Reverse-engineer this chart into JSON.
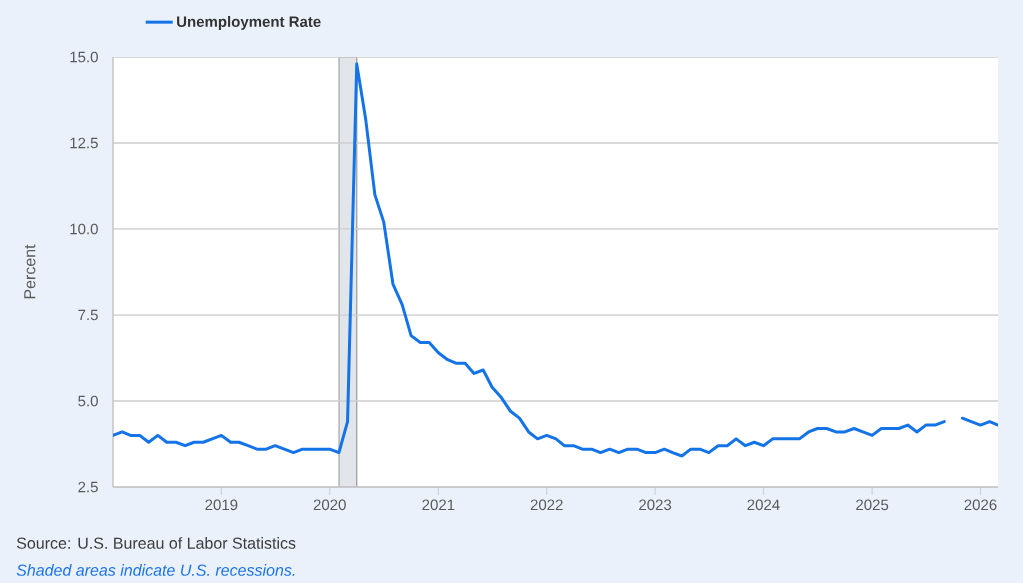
{
  "chart_data": {
    "type": "line",
    "x": [
      "2018-01",
      "2018-02",
      "2018-03",
      "2018-04",
      "2018-05",
      "2018-06",
      "2018-07",
      "2018-08",
      "2018-09",
      "2018-10",
      "2018-11",
      "2018-12",
      "2019-01",
      "2019-02",
      "2019-03",
      "2019-04",
      "2019-05",
      "2019-06",
      "2019-07",
      "2019-08",
      "2019-09",
      "2019-10",
      "2019-11",
      "2019-12",
      "2020-01",
      "2020-02",
      "2020-03",
      "2020-04",
      "2020-05",
      "2020-06",
      "2020-07",
      "2020-08",
      "2020-09",
      "2020-10",
      "2020-11",
      "2020-12",
      "2021-01",
      "2021-02",
      "2021-03",
      "2021-04",
      "2021-05",
      "2021-06",
      "2021-07",
      "2021-08",
      "2021-09",
      "2021-10",
      "2021-11",
      "2021-12",
      "2022-01",
      "2022-02",
      "2022-03",
      "2022-04",
      "2022-05",
      "2022-06",
      "2022-07",
      "2022-08",
      "2022-09",
      "2022-10",
      "2022-11",
      "2022-12",
      "2023-01",
      "2023-02",
      "2023-03",
      "2023-04",
      "2023-05",
      "2023-06",
      "2023-07",
      "2023-08",
      "2023-09",
      "2023-10",
      "2023-11",
      "2023-12",
      "2024-01",
      "2024-02",
      "2024-03",
      "2024-04",
      "2024-05",
      "2024-06",
      "2024-07",
      "2024-08",
      "2024-09",
      "2024-10",
      "2024-11",
      "2024-12",
      "2025-01",
      "2025-02",
      "2025-03",
      "2025-04",
      "2025-05",
      "2025-06",
      "2025-07",
      "2025-08",
      "2025-09",
      "2025-10",
      "2025-11",
      "2025-12",
      "2026-01",
      "2026-02",
      "2026-03"
    ],
    "series": [
      {
        "name": "Unemployment Rate",
        "color": "#1473e6",
        "values": [
          4.0,
          4.1,
          4.0,
          4.0,
          3.8,
          4.0,
          3.8,
          3.8,
          3.7,
          3.8,
          3.8,
          3.9,
          4.0,
          3.8,
          3.8,
          3.7,
          3.6,
          3.6,
          3.7,
          3.6,
          3.5,
          3.6,
          3.6,
          3.6,
          3.6,
          3.5,
          4.4,
          14.8,
          13.2,
          11.0,
          10.2,
          8.4,
          7.8,
          6.9,
          6.7,
          6.7,
          6.4,
          6.2,
          6.1,
          6.1,
          5.8,
          5.9,
          5.4,
          5.1,
          4.7,
          4.5,
          4.1,
          3.9,
          4.0,
          3.9,
          3.7,
          3.7,
          3.6,
          3.6,
          3.5,
          3.6,
          3.5,
          3.6,
          3.6,
          3.5,
          3.5,
          3.6,
          3.5,
          3.4,
          3.6,
          3.6,
          3.5,
          3.7,
          3.7,
          3.9,
          3.7,
          3.8,
          3.7,
          3.9,
          3.9,
          3.9,
          3.9,
          4.1,
          4.2,
          4.2,
          4.1,
          4.1,
          4.2,
          4.1,
          4.0,
          4.2,
          4.2,
          4.2,
          4.3,
          4.1,
          4.3,
          4.3,
          4.4,
          null,
          4.5,
          4.4,
          4.3,
          4.4,
          4.3
        ]
      }
    ],
    "xlim": [
      "2018-01",
      "2026-03"
    ],
    "xticks": [
      "2019",
      "2020",
      "2021",
      "2022",
      "2023",
      "2024",
      "2025",
      "2026"
    ],
    "ylim": [
      2.5,
      15
    ],
    "yticks": [
      {
        "value": 2.5,
        "label": "2.5"
      },
      {
        "value": 5,
        "label": "5.0"
      },
      {
        "value": 7.5,
        "label": "7.5"
      },
      {
        "value": 10,
        "label": "10.0"
      },
      {
        "value": 12.5,
        "label": "12.5"
      },
      {
        "value": 15,
        "label": "15.0"
      }
    ],
    "ylabel": "Percent",
    "bands": [
      {
        "axis": "x",
        "from": "2020-02",
        "to": "2020-04",
        "color": "#e2e6eb"
      }
    ],
    "grid": "y",
    "legend": "top left",
    "line_style": "solid",
    "annotations": [
      "Source: U.S. Bureau of Labor Statistics",
      "Shaded areas indicate U.S. recessions."
    ]
  }
}
